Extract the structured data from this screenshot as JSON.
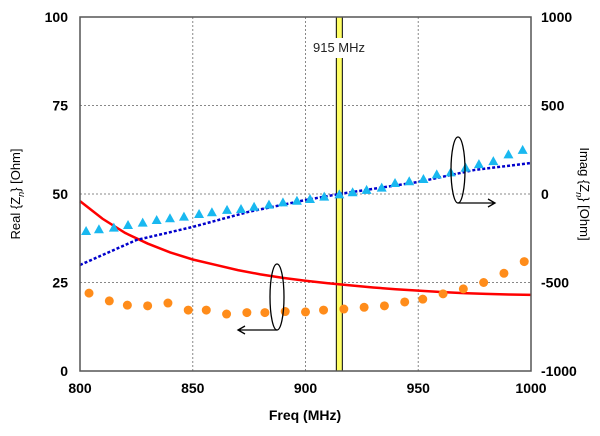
{
  "chart_data": {
    "type": "line",
    "xlabel": "Freq (MHz)",
    "ylabel_left": {
      "main": "Real {Z",
      "sub": "n",
      "tail": "} [Ohm]"
    },
    "ylabel_right": {
      "main": "Imag {Z",
      "sub": "n",
      "tail": "} [Ohm]"
    },
    "xlim": [
      800,
      1000
    ],
    "ylim_left": [
      0,
      100
    ],
    "ylim_right": [
      -1000,
      1000
    ],
    "xticks": [
      "800",
      "850",
      "900",
      "950",
      "1000"
    ],
    "yticks_left": [
      "0",
      "25",
      "50",
      "75",
      "100"
    ],
    "yticks_right": [
      "-1000",
      "-500",
      "0",
      "500",
      "1000"
    ],
    "grid": true,
    "marker": {
      "x": 915,
      "label": "915 MHz",
      "color": "#ffff66"
    },
    "series": [
      {
        "axis": "left",
        "style": "solid-line",
        "color": "#ff0000",
        "x": [
          800,
          810,
          820,
          830,
          840,
          850,
          860,
          870,
          880,
          890,
          900,
          910,
          920,
          930,
          940,
          950,
          960,
          970,
          980,
          990,
          1000
        ],
        "y": [
          48,
          43,
          39,
          36,
          33.5,
          31.5,
          30,
          28.5,
          27.3,
          26.3,
          25.5,
          24.8,
          24.2,
          23.6,
          23.1,
          22.7,
          22.3,
          22,
          21.8,
          21.6,
          21.5
        ]
      },
      {
        "axis": "left",
        "style": "circle-markers",
        "color": "#ff8c1a",
        "x": [
          804,
          813,
          821,
          830,
          839,
          848,
          856,
          865,
          874,
          882,
          891,
          900,
          908,
          917,
          926,
          935,
          944,
          952,
          961,
          970,
          979,
          988,
          997
        ],
        "y": [
          22,
          19.8,
          18.6,
          18.4,
          19.2,
          17.2,
          17.2,
          16.1,
          16.5,
          16.5,
          16.8,
          16.7,
          17.2,
          17.5,
          18,
          18.4,
          19.5,
          20.3,
          21.8,
          23.2,
          25,
          27.6,
          30.9
        ]
      },
      {
        "axis": "right",
        "style": "dotted-line",
        "color": "#0000cc",
        "x": [
          800,
          825,
          850,
          875,
          900,
          915,
          950,
          975,
          1000
        ],
        "y": [
          -401,
          -260,
          -186,
          -100,
          -34,
          0,
          68,
          136,
          175
        ]
      },
      {
        "axis": "right",
        "style": "triangle-markers",
        "color": "#19b8f0",
        "x": [
          802.7,
          808.4,
          815,
          821.3,
          827.8,
          834,
          839.9,
          846.1,
          852.8,
          858.5,
          865.2,
          871.4,
          877.2,
          883.8,
          890,
          896.2,
          902,
          908.3,
          915,
          920.9,
          927.1,
          933.8,
          939.7,
          946,
          952.3,
          958.2,
          964.4,
          971,
          976.9,
          983.3,
          990,
          996.3
        ],
        "y": [
          -209,
          -199,
          -190,
          -175,
          -162,
          -147,
          -137,
          -128,
          -113,
          -103,
          -90,
          -85,
          -72,
          -60,
          -47,
          -38,
          -28,
          -15,
          -2,
          10,
          23,
          36,
          62,
          72,
          85,
          111,
          122,
          149,
          169,
          186,
          224,
          249
        ]
      }
    ]
  }
}
